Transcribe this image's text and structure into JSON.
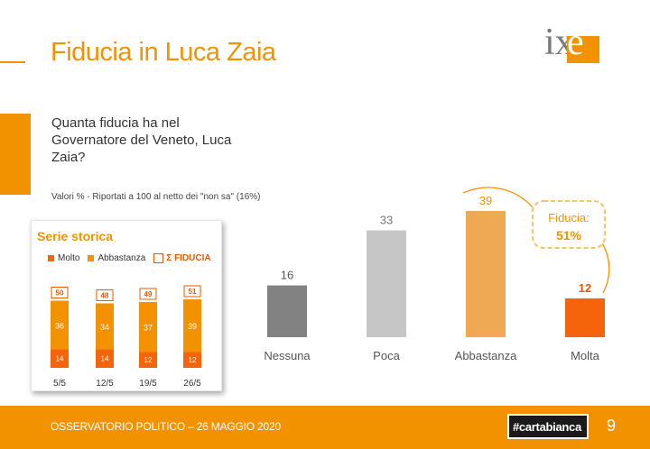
{
  "header": {
    "title": "Fiducia in Luca Zaia",
    "logo_text": "ix",
    "logo_box_text": "è"
  },
  "question": "Quanta fiducia ha nel Governatore del Veneto, Luca Zaia?",
  "note": "Valori % - Riportati a 100 al netto dei \"non sa\" (16%)",
  "panel": {
    "title": "Serie storica",
    "legend": {
      "molto": "Molto",
      "abbastanza": "Abbastanza",
      "sigma": "Σ",
      "fiducia": "FIDUCIA"
    }
  },
  "callout": {
    "label": "Fiducia:",
    "value": "51%"
  },
  "footer": {
    "text": "OSSERVATORIO POLITICO – 26 MAGGIO 2020",
    "brand": "#cartabianca",
    "page": "9"
  },
  "colors": {
    "orange": "#f39200",
    "dark_orange": "#f5640a",
    "light_orange": "#efa955",
    "grey_dark": "#828282",
    "grey_light": "#c6c6c6",
    "accent_red": "#e65a00"
  },
  "chart_data": [
    {
      "type": "bar",
      "title": "",
      "categories": [
        "Nessuna",
        "Poca",
        "Abbastanza",
        "Molta"
      ],
      "values": [
        16,
        33,
        39,
        12
      ],
      "ylim": [
        0,
        45
      ],
      "xlabel": "",
      "ylabel": ""
    },
    {
      "type": "bar",
      "title": "Serie storica",
      "stacked": true,
      "categories": [
        "5/5",
        "12/5",
        "19/5",
        "26/5"
      ],
      "series": [
        {
          "name": "Molto",
          "values": [
            14,
            14,
            12,
            12
          ]
        },
        {
          "name": "Abbastanza",
          "values": [
            36,
            34,
            37,
            39
          ]
        }
      ],
      "totals_label": "Σ FIDUCIA",
      "totals": [
        50,
        48,
        49,
        51
      ],
      "ylim": [
        0,
        55
      ]
    }
  ]
}
